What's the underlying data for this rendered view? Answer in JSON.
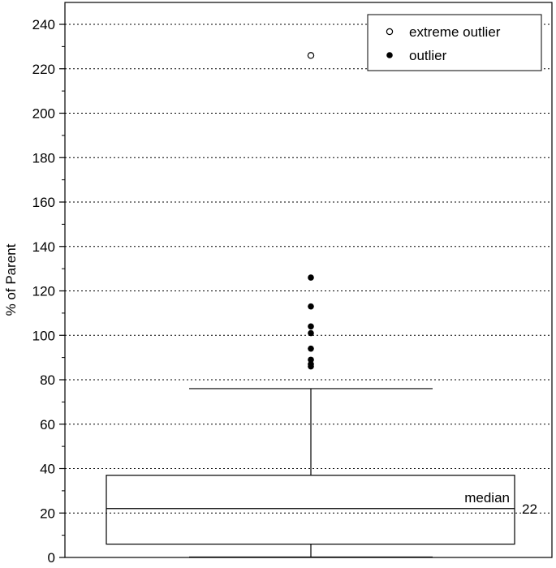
{
  "chart_data": {
    "type": "box",
    "ylabel": "% of Parent",
    "ylim": [
      0,
      240
    ],
    "ytick_step": 20,
    "grid": true,
    "legend_placement": "top-right",
    "box": {
      "whisker_low": 0,
      "q1": 6,
      "median": 22,
      "q3": 37,
      "whisker_high": 76
    },
    "median_label": "median",
    "median_value_label": "22",
    "outliers": [
      86,
      87,
      89,
      94,
      101,
      104,
      113,
      126
    ],
    "extreme_outliers": [
      226
    ],
    "legend": [
      {
        "label": "extreme outlier",
        "marker": "open-circle"
      },
      {
        "label": "outlier",
        "marker": "filled-circle"
      }
    ]
  }
}
